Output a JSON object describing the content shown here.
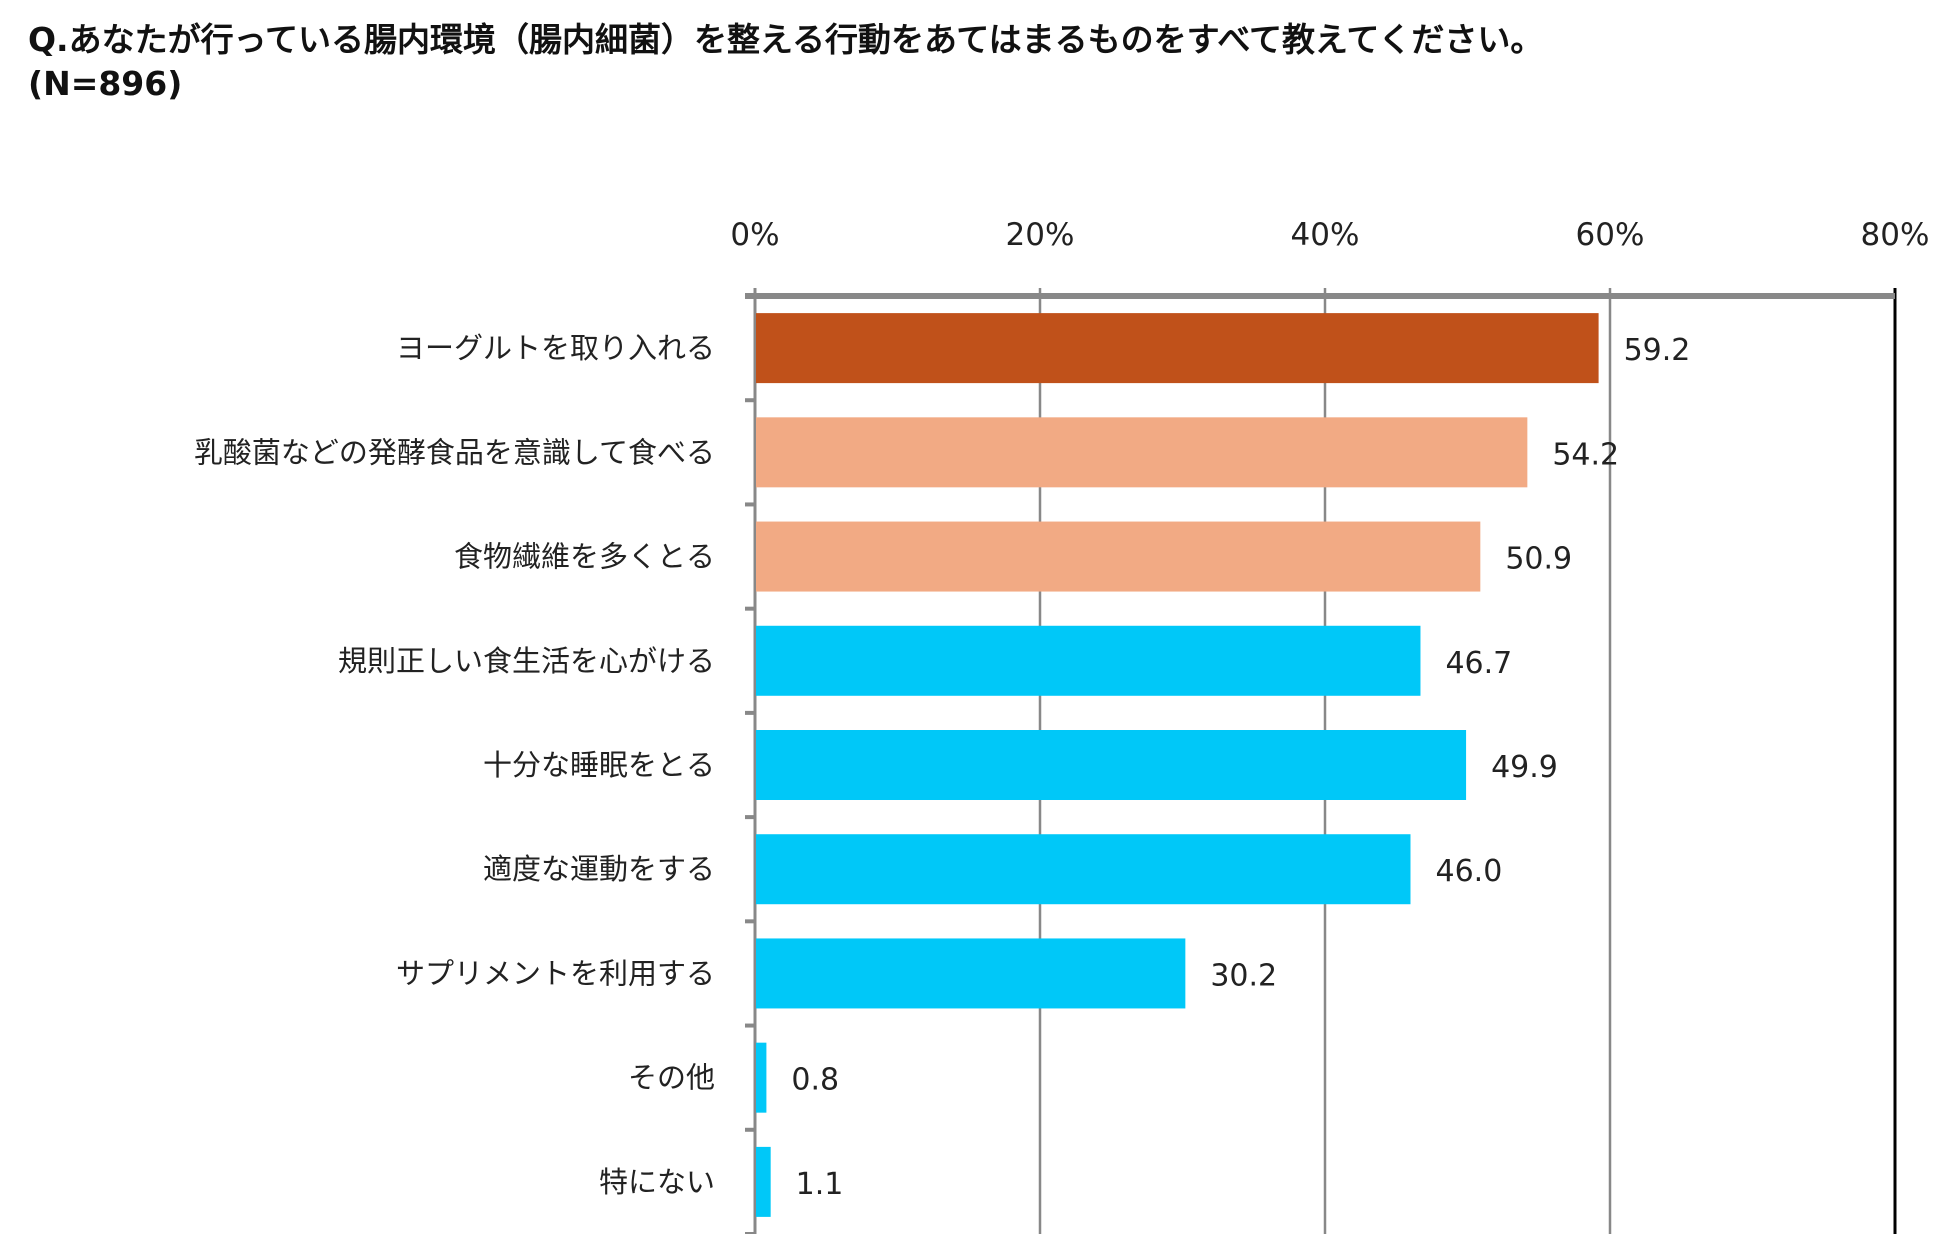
{
  "chart_data": {
    "type": "bar",
    "orientation": "horizontal",
    "title": "Q.あなたが行っている腸内環境（腸内細菌）を整える行動をあてはまるものをすべて教えてください。\n(N=896)",
    "categories": [
      "ヨーグルトを取り入れる",
      "乳酸菌などの発酵食品を意識して食べる",
      "食物繊維を多くとる",
      "規則正しい食生活を心がける",
      "十分な睡眠をとる",
      "適度な運動をする",
      "サプリメントを利用する",
      "その他",
      "特にない"
    ],
    "values": [
      59.2,
      54.2,
      50.9,
      46.7,
      49.9,
      46.0,
      30.2,
      0.8,
      1.1
    ],
    "value_labels": [
      "59.2",
      "54.2",
      "50.9",
      "46.7",
      "49.9",
      "46.0",
      "30.2",
      "0.8",
      "1.1"
    ],
    "bar_colors": [
      "#C0511A",
      "#F2AA84",
      "#F2AA84",
      "#00C8F8",
      "#00C8F8",
      "#00C8F8",
      "#00C8F8",
      "#00C8F8",
      "#00C8F8"
    ],
    "xlim": [
      0,
      80
    ],
    "x_ticks": [
      0,
      20,
      40,
      60,
      80
    ],
    "x_tick_labels": [
      "0%",
      "20%",
      "40%",
      "60%",
      "80%"
    ],
    "x_axis_position": "top",
    "grid": true,
    "xlabel": "",
    "ylabel": ""
  }
}
